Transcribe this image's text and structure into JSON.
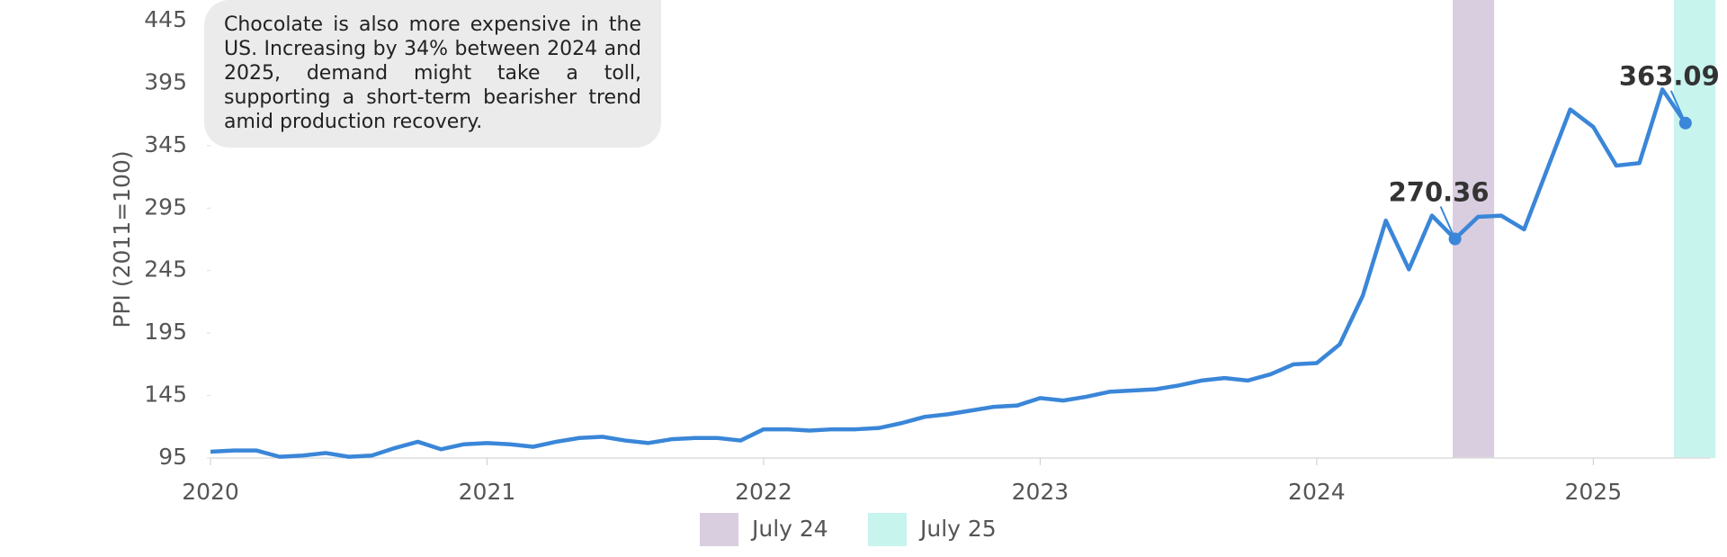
{
  "chart_data": {
    "type": "line",
    "y_label": "PPI (2011=100)",
    "note": "Chocolate is also more expensive in the US. Increasing by 34% between 2024 and 2025, demand might take a toll, supporting a short-term bearisher trend amid production recovery.",
    "x": [
      0,
      1,
      2,
      3,
      4,
      5,
      6,
      7,
      8,
      9,
      10,
      11,
      12,
      13,
      14,
      15,
      16,
      17,
      18,
      19,
      20,
      21,
      22,
      23,
      24,
      25,
      26,
      27,
      28,
      29,
      30,
      31,
      32,
      33,
      34,
      35,
      36,
      37,
      38,
      39,
      40,
      41,
      42,
      43,
      44,
      45,
      46,
      47,
      48,
      49,
      50,
      51,
      52,
      53,
      54,
      55,
      56,
      57,
      58,
      59,
      60,
      61,
      62,
      63,
      64
    ],
    "series": [
      {
        "name": "PPI",
        "color": "#3a86d8",
        "values": [
          100,
          101,
          101,
          96,
          97,
          99,
          96,
          97,
          103,
          108,
          102,
          106,
          107,
          106,
          104,
          108,
          111,
          112,
          109,
          107,
          110,
          111,
          111,
          109,
          118,
          118,
          117,
          118,
          118,
          119,
          123,
          128,
          130,
          133,
          136,
          137,
          143,
          141,
          144,
          148,
          149,
          150,
          153,
          157,
          159,
          157,
          162,
          170,
          171,
          186,
          225,
          285,
          246,
          289,
          270.36,
          288,
          289,
          278,
          326,
          374,
          360,
          329,
          331,
          390,
          363.09
        ]
      }
    ],
    "xlim": [
      0,
      65.1
    ],
    "xticks": [
      {
        "value": 0,
        "label": "2020"
      },
      {
        "value": 12,
        "label": "2021"
      },
      {
        "value": 24,
        "label": "2022"
      },
      {
        "value": 36,
        "label": "2023"
      },
      {
        "value": 48,
        "label": "2024"
      },
      {
        "value": 60,
        "label": "2025"
      }
    ],
    "ylim": [
      95,
      445
    ],
    "yticks": [
      95,
      145,
      195,
      245,
      295,
      345,
      395,
      445
    ],
    "highlights": [
      {
        "name": "July 24",
        "color": "#d9cde0",
        "x": [
          53.9,
          55.7
        ]
      },
      {
        "name": "July 25",
        "color": "#c8f4ee",
        "x": [
          63.5,
          65.3
        ]
      }
    ],
    "annotations": [
      {
        "x": 54,
        "value": 270.36
      },
      {
        "x": 64,
        "value": 363.09
      }
    ]
  }
}
